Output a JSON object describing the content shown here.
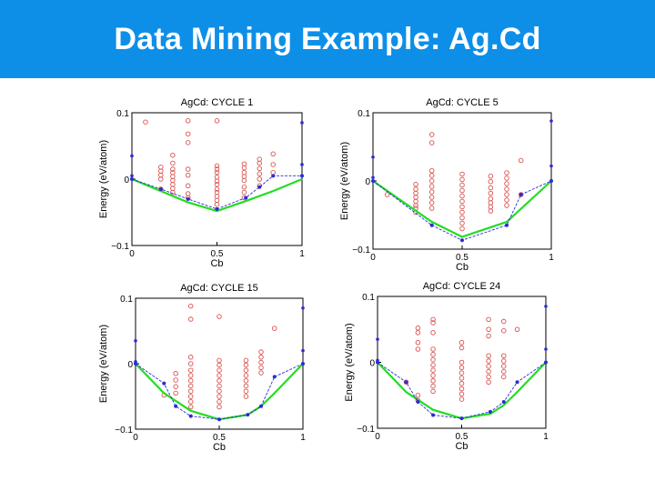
{
  "slide": {
    "title": "Data Mining Example: Ag.Cd"
  },
  "colors": {
    "header": "#0d8fe8",
    "candidates": "#d9534f",
    "hull_line": "#2b2bd6",
    "ground_truth": "#22dd22"
  },
  "chart_data": [
    {
      "type": "scatter",
      "title": "AgCd: CYCLE 1",
      "xlabel": "Cb",
      "ylabel": "Energy (eV/atom)",
      "xlim": [
        0,
        1
      ],
      "ylim": [
        -0.1,
        0.1
      ],
      "xticks": [
        "0",
        "0.5",
        "1"
      ],
      "yticks": [
        "0.1",
        "0",
        "−0.1"
      ],
      "ground_truth": {
        "x": [
          0,
          0.17,
          0.33,
          0.5,
          0.67,
          0.83,
          1
        ],
        "y": [
          0,
          -0.018,
          -0.035,
          -0.048,
          -0.033,
          -0.018,
          0
        ]
      },
      "hull": {
        "x": [
          0,
          0.17,
          0.33,
          0.5,
          0.67,
          0.75,
          0.83,
          1
        ],
        "y": [
          0,
          -0.015,
          -0.03,
          -0.045,
          -0.028,
          -0.012,
          0.005,
          0.005
        ]
      },
      "endpoints": {
        "x": [
          0,
          0,
          0,
          1,
          1
        ],
        "y": [
          0.035,
          0.005,
          0,
          0.085,
          0.022
        ]
      },
      "candidates": {
        "x": [
          0.08,
          0.17,
          0.17,
          0.17,
          0.17,
          0.17,
          0.24,
          0.24,
          0.24,
          0.24,
          0.24,
          0.24,
          0.24,
          0.24,
          0.24,
          0.33,
          0.33,
          0.33,
          0.33,
          0.33,
          0.33,
          0.33,
          0.33,
          0.5,
          0.5,
          0.5,
          0.5,
          0.5,
          0.5,
          0.5,
          0.5,
          0.5,
          0.5,
          0.5,
          0.5,
          0.66,
          0.66,
          0.66,
          0.66,
          0.66,
          0.66,
          0.66,
          0.66,
          0.75,
          0.75,
          0.75,
          0.75,
          0.75,
          0.75,
          0.83,
          0.83,
          0.83
        ],
        "y": [
          0.086,
          0.018,
          0.012,
          0.006,
          0.0,
          -0.015,
          0.036,
          0.024,
          0.015,
          0.01,
          0.004,
          -0.002,
          -0.008,
          -0.014,
          -0.02,
          0.088,
          0.068,
          0.055,
          0.015,
          0.006,
          -0.01,
          -0.022,
          -0.028,
          0.088,
          0.02,
          0.015,
          0.01,
          0.003,
          -0.003,
          -0.008,
          -0.015,
          -0.02,
          -0.026,
          -0.032,
          -0.038,
          0.023,
          0.017,
          0.01,
          0.004,
          -0.002,
          -0.012,
          -0.02,
          -0.028,
          0.03,
          0.024,
          0.016,
          0.008,
          0.0,
          -0.01,
          0.038,
          0.022,
          0.01
        ]
      }
    },
    {
      "type": "scatter",
      "title": "AgCd: CYCLE 5",
      "xlabel": "Cb",
      "ylabel": "Energy (eV/atom)",
      "xlim": [
        0,
        1
      ],
      "ylim": [
        -0.1,
        0.1
      ],
      "xticks": [
        "0",
        "0.5",
        "1"
      ],
      "yticks": [
        "0.1",
        "0",
        "−0.1"
      ],
      "ground_truth": {
        "x": [
          0,
          0.33,
          0.5,
          0.75,
          1
        ],
        "y": [
          0,
          -0.06,
          -0.082,
          -0.06,
          0
        ]
      },
      "hull": {
        "x": [
          0,
          0.33,
          0.5,
          0.75,
          0.83,
          1
        ],
        "y": [
          0,
          -0.065,
          -0.087,
          -0.065,
          -0.02,
          0
        ]
      },
      "endpoints": {
        "x": [
          0,
          0,
          1,
          1
        ],
        "y": [
          0.035,
          0.005,
          0.088,
          0.022
        ]
      },
      "candidates": {
        "x": [
          0.08,
          0.24,
          0.24,
          0.24,
          0.24,
          0.24,
          0.24,
          0.24,
          0.24,
          0.33,
          0.33,
          0.33,
          0.33,
          0.33,
          0.33,
          0.33,
          0.33,
          0.33,
          0.33,
          0.5,
          0.5,
          0.5,
          0.5,
          0.5,
          0.5,
          0.5,
          0.5,
          0.5,
          0.5,
          0.5,
          0.66,
          0.66,
          0.66,
          0.66,
          0.66,
          0.66,
          0.66,
          0.66,
          0.75,
          0.75,
          0.75,
          0.75,
          0.75,
          0.75,
          0.75,
          0.83,
          0.83
        ],
        "y": [
          -0.02,
          -0.005,
          -0.012,
          -0.018,
          -0.024,
          -0.03,
          -0.036,
          -0.04,
          -0.046,
          0.068,
          0.056,
          0.015,
          0.008,
          0.0,
          -0.008,
          -0.016,
          -0.024,
          -0.032,
          -0.04,
          0.01,
          0.002,
          -0.006,
          -0.014,
          -0.022,
          -0.03,
          -0.038,
          -0.046,
          -0.054,
          -0.062,
          -0.07,
          0.007,
          -0.001,
          -0.01,
          -0.018,
          -0.026,
          -0.032,
          -0.038,
          -0.044,
          0.012,
          0.004,
          -0.004,
          -0.012,
          -0.02,
          -0.028,
          -0.036,
          0.03,
          -0.02
        ]
      }
    },
    {
      "type": "scatter",
      "title": "AgCd: CYCLE 15",
      "xlabel": "Cb",
      "ylabel": "Energy (eV/atom)",
      "xlim": [
        0,
        1
      ],
      "ylim": [
        -0.1,
        0.1
      ],
      "xticks": [
        "0",
        "0.5",
        "1"
      ],
      "yticks": [
        "0.1",
        "0",
        "−0.1"
      ],
      "ground_truth": {
        "x": [
          0,
          0.17,
          0.33,
          0.5,
          0.67,
          0.75,
          0.83,
          1
        ],
        "y": [
          0,
          -0.045,
          -0.072,
          -0.085,
          -0.078,
          -0.065,
          -0.045,
          0
        ]
      },
      "hull": {
        "x": [
          0,
          0.17,
          0.24,
          0.33,
          0.5,
          0.67,
          0.75,
          0.83,
          1
        ],
        "y": [
          0,
          -0.03,
          -0.065,
          -0.08,
          -0.085,
          -0.078,
          -0.065,
          -0.02,
          0
        ]
      },
      "endpoints": {
        "x": [
          0,
          0,
          1,
          1
        ],
        "y": [
          0.035,
          0.003,
          0.085,
          0.02
        ]
      },
      "candidates": {
        "x": [
          0.17,
          0.24,
          0.24,
          0.24,
          0.24,
          0.33,
          0.33,
          0.33,
          0.33,
          0.33,
          0.33,
          0.33,
          0.33,
          0.33,
          0.33,
          0.33,
          0.33,
          0.5,
          0.5,
          0.5,
          0.5,
          0.5,
          0.5,
          0.5,
          0.5,
          0.5,
          0.5,
          0.5,
          0.66,
          0.66,
          0.66,
          0.66,
          0.66,
          0.66,
          0.66,
          0.66,
          0.75,
          0.75,
          0.75,
          0.75,
          0.75,
          0.83
        ],
        "y": [
          -0.048,
          -0.015,
          -0.025,
          -0.035,
          -0.045,
          0.088,
          0.068,
          0.01,
          0.0,
          -0.01,
          -0.018,
          -0.026,
          -0.034,
          -0.042,
          -0.05,
          -0.058,
          -0.066,
          0.072,
          0.005,
          -0.002,
          -0.01,
          -0.018,
          -0.026,
          -0.034,
          -0.042,
          -0.05,
          -0.058,
          -0.066,
          0.005,
          -0.002,
          -0.01,
          -0.018,
          -0.026,
          -0.034,
          -0.042,
          -0.05,
          0.018,
          0.01,
          0.002,
          -0.006,
          -0.014,
          0.054
        ]
      }
    },
    {
      "type": "scatter",
      "title": "AgCd: CYCLE 24",
      "xlabel": "Cb",
      "ylabel": "Energy (eV/atom)",
      "xlim": [
        0,
        1
      ],
      "ylim": [
        -0.1,
        0.1
      ],
      "xticks": [
        "0",
        "0.5",
        "1"
      ],
      "yticks": [
        "0.1",
        "0",
        "−0.1"
      ],
      "ground_truth": {
        "x": [
          0,
          0.17,
          0.33,
          0.5,
          0.67,
          0.75,
          0.83,
          1
        ],
        "y": [
          0,
          -0.045,
          -0.072,
          -0.085,
          -0.078,
          -0.065,
          -0.045,
          0
        ]
      },
      "hull": {
        "x": [
          0,
          0.17,
          0.24,
          0.33,
          0.5,
          0.67,
          0.75,
          0.83,
          1
        ],
        "y": [
          0,
          -0.03,
          -0.06,
          -0.08,
          -0.085,
          -0.075,
          -0.06,
          -0.03,
          0
        ]
      },
      "endpoints": {
        "x": [
          0,
          0,
          1,
          1
        ],
        "y": [
          0.035,
          0.003,
          0.085,
          0.02
        ]
      },
      "candidates": {
        "x": [
          0.17,
          0.24,
          0.24,
          0.24,
          0.24,
          0.24,
          0.24,
          0.33,
          0.33,
          0.33,
          0.33,
          0.33,
          0.33,
          0.33,
          0.33,
          0.33,
          0.33,
          0.33,
          0.33,
          0.5,
          0.5,
          0.5,
          0.5,
          0.5,
          0.5,
          0.5,
          0.5,
          0.5,
          0.5,
          0.66,
          0.66,
          0.66,
          0.66,
          0.66,
          0.66,
          0.66,
          0.66,
          0.66,
          0.75,
          0.75,
          0.75,
          0.75,
          0.75,
          0.75,
          0.75,
          0.83
        ],
        "y": [
          -0.03,
          0.052,
          0.045,
          0.03,
          0.02,
          -0.05,
          -0.058,
          0.065,
          0.06,
          0.045,
          0.02,
          0.012,
          0.004,
          -0.004,
          -0.012,
          -0.02,
          -0.028,
          -0.036,
          -0.044,
          0.03,
          0.022,
          0.0,
          -0.008,
          -0.016,
          -0.024,
          -0.032,
          -0.04,
          -0.048,
          -0.056,
          0.065,
          0.05,
          0.04,
          0.01,
          0.002,
          -0.006,
          -0.014,
          -0.022,
          -0.03,
          0.062,
          0.048,
          0.01,
          0.002,
          -0.006,
          -0.014,
          -0.022,
          0.05
        ]
      }
    }
  ]
}
